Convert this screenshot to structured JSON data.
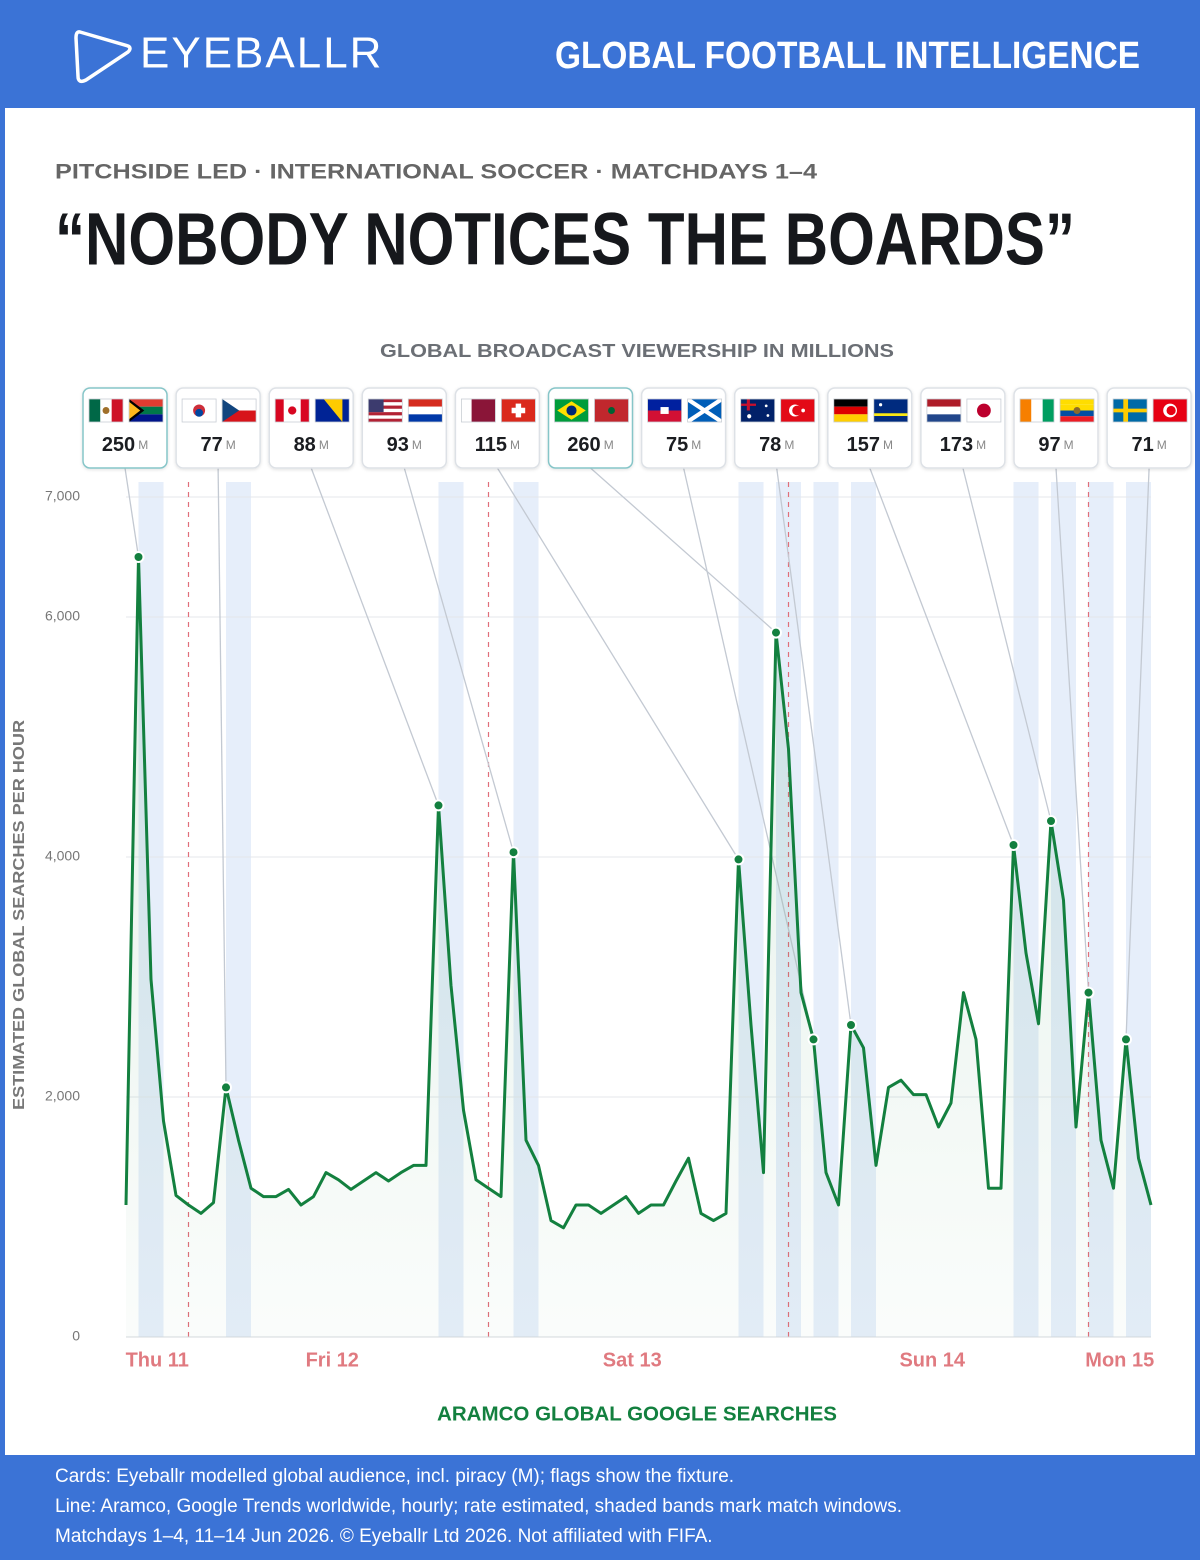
{
  "header": {
    "brand": "EYEBALLR",
    "tagline": "GLOBAL FOOTBALL INTELLIGENCE"
  },
  "chart_data": {
    "type": "line",
    "subtitle": "PITCHSIDE LED · INTERNATIONAL SOCCER · MATCHDAYS 1–4",
    "title": "“NOBODY NOTICES THE BOARDS”",
    "cards_title": "GLOBAL BROADCAST VIEWERSHIP IN MILLIONS",
    "cards": {
      "unit": "M",
      "values": [
        250,
        77,
        88,
        93,
        115,
        260,
        75,
        78,
        157,
        173,
        97,
        71
      ]
    },
    "ylabel": "ESTIMATED GLOBAL SEARCHES PER HOUR",
    "xlabel": "ARAMCO GLOBAL GOOGLE SEARCHES",
    "color": "#13803f",
    "x": [
      0,
      1,
      2,
      3,
      4,
      5,
      6,
      7,
      8,
      9,
      10,
      11,
      12,
      13,
      14,
      15,
      16,
      17,
      18,
      19,
      20,
      21,
      22,
      23,
      24,
      25,
      26,
      27,
      28,
      29,
      30,
      31,
      32,
      33,
      34,
      35,
      36,
      37,
      38,
      39,
      40,
      41,
      42,
      43,
      44,
      45,
      46,
      47,
      48,
      49,
      50,
      51,
      52,
      53,
      54,
      55,
      56,
      57,
      58,
      59,
      60,
      61,
      62,
      63,
      64,
      65,
      66,
      67,
      68,
      69,
      70,
      71,
      72,
      73,
      74,
      75,
      76,
      77,
      78,
      79,
      80,
      81,
      82
    ],
    "values": [
      1100,
      6500,
      2980,
      1800,
      1180,
      1100,
      1030,
      1120,
      2080,
      1640,
      1240,
      1170,
      1170,
      1230,
      1100,
      1170,
      1370,
      1310,
      1230,
      1300,
      1370,
      1300,
      1370,
      1430,
      1430,
      4430,
      2930,
      1890,
      1310,
      1240,
      1170,
      4040,
      1640,
      1430,
      970,
      910,
      1100,
      1100,
      1030,
      1100,
      1170,
      1030,
      1100,
      1100,
      1300,
      1490,
      1030,
      970,
      1030,
      3980,
      2600,
      1370,
      5870,
      4900,
      2870,
      2480,
      1370,
      1100,
      2600,
      2410,
      1430,
      2080,
      2140,
      2020,
      2020,
      1750,
      1950,
      2870,
      2480,
      1240,
      1240,
      4100,
      3200,
      2610,
      4300,
      3640,
      1750,
      2870,
      1640,
      1240,
      2480,
      1490,
      1100
    ],
    "xlim": [
      0,
      82
    ],
    "xticks": [
      {
        "value": 2.5,
        "label": "Thu 11"
      },
      {
        "value": 16.5,
        "label": "Fri 12"
      },
      {
        "value": 40.5,
        "label": "Sat 13"
      },
      {
        "value": 64.5,
        "label": "Sun 14"
      },
      {
        "value": 79.5,
        "label": "Mon 15"
      }
    ],
    "day_starts": [
      5,
      29,
      53,
      77
    ],
    "match_windows": [
      [
        1,
        3
      ],
      [
        8,
        10
      ],
      [
        25,
        27
      ],
      [
        31,
        33
      ],
      [
        49,
        51
      ],
      [
        52,
        54
      ],
      [
        55,
        57
      ],
      [
        58,
        60
      ],
      [
        71,
        73
      ],
      [
        74,
        76
      ],
      [
        77,
        79
      ],
      [
        80,
        82
      ]
    ],
    "ylim": [
      0,
      7000
    ],
    "yticks": [
      0,
      {
        "value": 2000,
        "label": "2,000"
      },
      {
        "value": 4000,
        "label": "4,000"
      },
      {
        "value": 6000,
        "label": "6,000"
      },
      {
        "value": 7000,
        "label": "7,000"
      }
    ],
    "grid": true
  },
  "footer": {
    "notes": [
      "Cards: Eyeballr modelled global audience, incl. piracy (M); flags show the fixture.",
      "Line: Aramco, Google Trends worldwide, hourly; rate estimated, shaded bands mark match windows.",
      "Matchdays 1–4, 11–14 Jun 2026. © Eyeballr Ltd 2026. Not affiliated with FIFA."
    ]
  }
}
